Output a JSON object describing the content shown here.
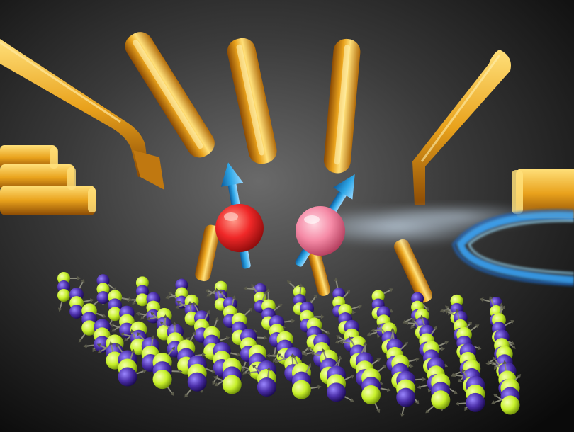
{
  "scene": {
    "palette": {
      "background_center": "#6a6a6a",
      "background_edge": "#0a0a0a",
      "gold": "#e9a21c",
      "gold_highlight": "#ffe07a",
      "gold_shadow": "#8a4a04",
      "spin_red": "#f02828",
      "spin_pink": "#f58aa6",
      "arrow_blue": "#2fa8e8",
      "lattice_yellow": "#c7f02a",
      "lattice_violet": "#4a2ea8",
      "spike_gray": "#8a8a7a",
      "microwave_blue": "#3aa8ff"
    },
    "icons": {
      "electrode": "gold-bar-electrode",
      "electron": "spin-sphere",
      "spin_arrow": "spin-arrow",
      "lattice_atom": "nuclear-spin-atom",
      "resonator": "microwave-coil"
    }
  }
}
